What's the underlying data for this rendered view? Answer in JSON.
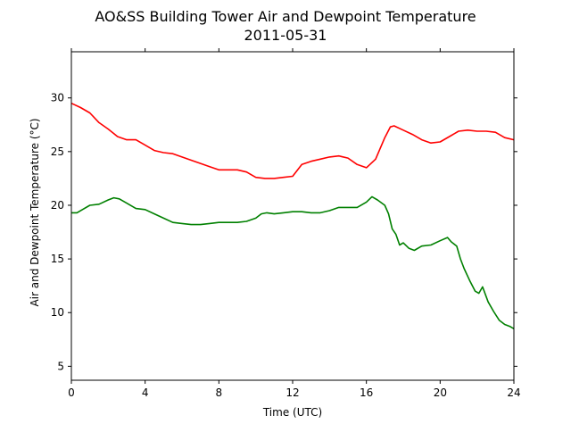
{
  "chart_data": {
    "type": "line",
    "title": "AO&SS Building Tower Air and Dewpoint Temperature",
    "subtitle": "2011-05-31",
    "xlabel": "Time (UTC)",
    "ylabel": "Air and Dewpoint Temperature (°C)",
    "xlim": [
      0,
      24
    ],
    "ylim": [
      3.7,
      34.3
    ],
    "xticks": [
      0,
      4,
      8,
      12,
      16,
      20,
      24
    ],
    "yticks": [
      5,
      10,
      15,
      20,
      25,
      30
    ],
    "grid": false,
    "legend": "none",
    "series": [
      {
        "color": "#ff0000",
        "x": [
          0,
          0.5,
          1,
          1.5,
          2,
          2.5,
          3,
          3.5,
          4,
          4.5,
          5,
          5.5,
          6,
          6.5,
          7,
          7.5,
          8,
          8.5,
          9,
          9.5,
          10,
          10.5,
          11,
          11.5,
          12,
          12.5,
          13,
          13.5,
          14,
          14.5,
          15,
          15.5,
          16,
          16.5,
          17,
          17.3,
          17.5,
          18,
          18.5,
          19,
          19.5,
          20,
          20.5,
          21,
          21.5,
          22,
          22.5,
          23,
          23.5,
          24
        ],
        "y": [
          29.5,
          29.1,
          28.6,
          27.7,
          27.1,
          26.4,
          26.1,
          26.1,
          25.6,
          25.1,
          24.9,
          24.8,
          24.5,
          24.2,
          23.9,
          23.6,
          23.3,
          23.3,
          23.3,
          23.1,
          22.6,
          22.5,
          22.5,
          22.6,
          22.7,
          23.8,
          24.1,
          24.3,
          24.5,
          24.6,
          24.4,
          23.8,
          23.5,
          24.3,
          26.3,
          27.3,
          27.4,
          27.0,
          26.6,
          26.1,
          25.8,
          25.9,
          26.4,
          26.9,
          27.0,
          26.9,
          26.9,
          26.8,
          26.3,
          26.1
        ]
      },
      {
        "color": "#008000",
        "x": [
          0,
          0.3,
          0.6,
          1,
          1.5,
          2,
          2.3,
          2.6,
          3,
          3.5,
          4,
          4.5,
          5,
          5.5,
          6,
          6.5,
          7,
          7.5,
          8,
          8.5,
          9,
          9.5,
          10,
          10.3,
          10.6,
          11,
          11.5,
          12,
          12.5,
          13,
          13.5,
          14,
          14.5,
          15,
          15.5,
          16,
          16.3,
          16.6,
          17,
          17.2,
          17.4,
          17.6,
          17.8,
          18,
          18.3,
          18.6,
          19,
          19.5,
          20,
          20.4,
          20.6,
          20.9,
          21.1,
          21.3,
          21.6,
          21.9,
          22.1,
          22.3,
          22.6,
          22.9,
          23.2,
          23.5,
          23.8,
          24
        ],
        "y": [
          19.3,
          19.3,
          19.6,
          20.0,
          20.1,
          20.5,
          20.7,
          20.6,
          20.2,
          19.7,
          19.6,
          19.2,
          18.8,
          18.4,
          18.3,
          18.2,
          18.2,
          18.3,
          18.4,
          18.4,
          18.4,
          18.5,
          18.8,
          19.2,
          19.3,
          19.2,
          19.3,
          19.4,
          19.4,
          19.3,
          19.3,
          19.5,
          19.8,
          19.8,
          19.8,
          20.3,
          20.8,
          20.5,
          20.0,
          19.2,
          17.8,
          17.3,
          16.3,
          16.5,
          16.0,
          15.8,
          16.2,
          16.3,
          16.7,
          17.0,
          16.6,
          16.2,
          15.0,
          14.1,
          13.0,
          12.0,
          11.8,
          12.4,
          11.0,
          10.1,
          9.3,
          8.9,
          8.7,
          8.5
        ]
      }
    ]
  }
}
